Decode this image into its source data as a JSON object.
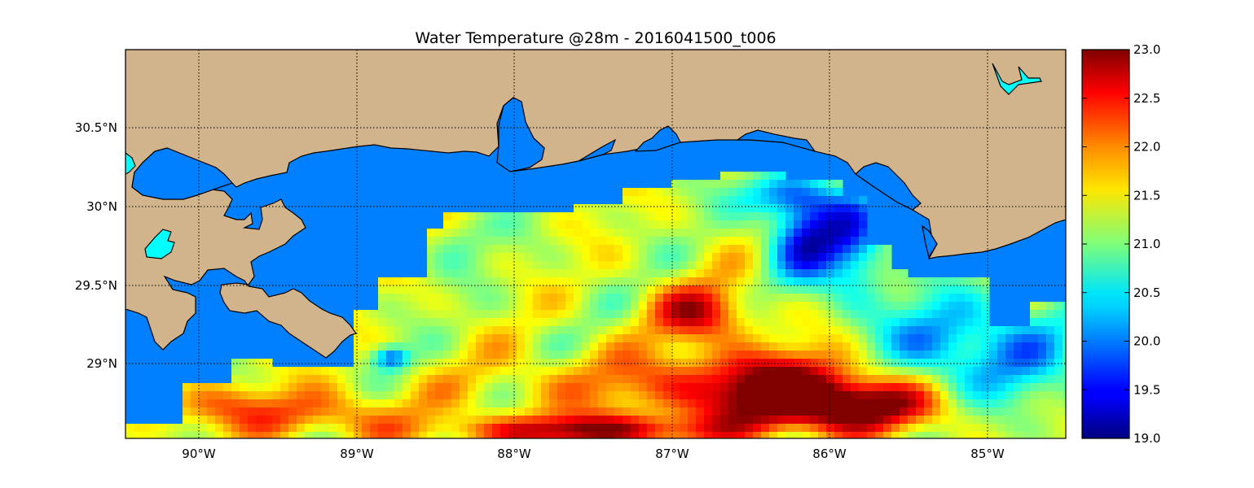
{
  "title": "Water Temperature @28m - 2016041500_t006",
  "map": {
    "lon_range": [
      -90.5,
      -84.5
    ],
    "lat_range": [
      28.53,
      30.99
    ],
    "lon_ticks": [
      "90°W",
      "89°W",
      "88°W",
      "87°W",
      "86°W",
      "85°W"
    ],
    "lat_ticks": [
      "30.5°N",
      "30°N",
      "29.5°N",
      "29°N"
    ],
    "land_color": "#d2b48c",
    "masked_water_color": "#0080ff",
    "lake_color": "#00ffff",
    "grid": "dotted",
    "colormap": "jet"
  },
  "colorbar": {
    "min": 19.0,
    "max": 23.0,
    "ticks": [
      "23.0",
      "22.5",
      "22.0",
      "21.5",
      "21.0",
      "20.5",
      "20.0",
      "19.5",
      "19.0"
    ]
  }
}
